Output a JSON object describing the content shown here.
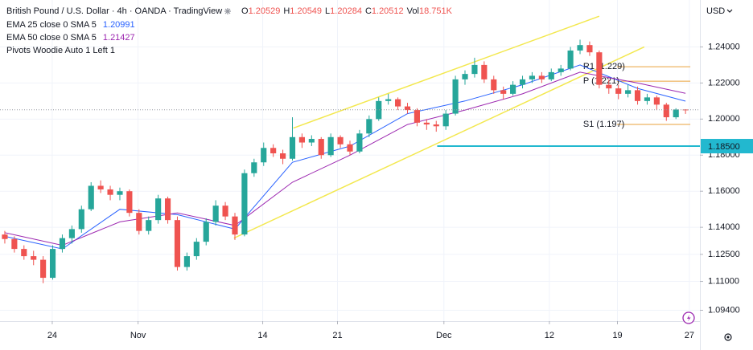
{
  "chart_data": {
    "type": "candlestick",
    "title": "British Pound / U.S. Dollar · 4h · OANDA · TradingView",
    "currency": "USD",
    "ohlc_labels": [
      "O",
      "H",
      "L",
      "C"
    ],
    "volume_label": "Vol",
    "volume": "18.751K",
    "up_color": "#26a69a",
    "down_color": "#ef5350",
    "candles": [
      [
        1.136,
        1.138,
        1.131,
        1.1335
      ],
      [
        1.1335,
        1.135,
        1.126,
        1.128
      ],
      [
        1.128,
        1.13,
        1.122,
        1.124
      ],
      [
        1.124,
        1.127,
        1.119,
        1.122
      ],
      [
        1.122,
        1.124,
        1.109,
        1.112
      ],
      [
        1.112,
        1.13,
        1.111,
        1.128
      ],
      [
        1.128,
        1.136,
        1.126,
        1.134
      ],
      [
        1.134,
        1.141,
        1.131,
        1.139
      ],
      [
        1.139,
        1.152,
        1.137,
        1.15
      ],
      [
        1.15,
        1.165,
        1.149,
        1.163
      ],
      [
        1.163,
        1.166,
        1.159,
        1.161
      ],
      [
        1.161,
        1.163,
        1.155,
        1.158
      ],
      [
        1.158,
        1.162,
        1.155,
        1.16
      ],
      [
        1.16,
        1.161,
        1.146,
        1.148
      ],
      [
        1.148,
        1.15,
        1.136,
        1.138
      ],
      [
        1.138,
        1.146,
        1.136,
        1.144
      ],
      [
        1.144,
        1.158,
        1.142,
        1.156
      ],
      [
        1.156,
        1.157,
        1.142,
        1.144
      ],
      [
        1.144,
        1.146,
        1.116,
        1.118
      ],
      [
        1.118,
        1.126,
        1.116,
        1.124
      ],
      [
        1.124,
        1.134,
        1.122,
        1.132
      ],
      [
        1.132,
        1.145,
        1.13,
        1.143
      ],
      [
        1.143,
        1.155,
        1.141,
        1.152
      ],
      [
        1.152,
        1.154,
        1.144,
        1.146
      ],
      [
        1.146,
        1.148,
        1.133,
        1.136
      ],
      [
        1.136,
        1.172,
        1.135,
        1.17
      ],
      [
        1.17,
        1.178,
        1.168,
        1.176
      ],
      [
        1.176,
        1.187,
        1.174,
        1.184
      ],
      [
        1.184,
        1.186,
        1.179,
        1.181
      ],
      [
        1.181,
        1.183,
        1.175,
        1.178
      ],
      [
        1.178,
        1.201,
        1.177,
        1.19
      ],
      [
        1.19,
        1.192,
        1.184,
        1.187
      ],
      [
        1.187,
        1.191,
        1.185,
        1.189
      ],
      [
        1.189,
        1.19,
        1.178,
        1.18
      ],
      [
        1.18,
        1.192,
        1.179,
        1.19
      ],
      [
        1.19,
        1.191,
        1.184,
        1.186
      ],
      [
        1.186,
        1.188,
        1.18,
        1.182
      ],
      [
        1.182,
        1.194,
        1.181,
        1.192
      ],
      [
        1.192,
        1.202,
        1.19,
        1.2
      ],
      [
        1.2,
        1.212,
        1.199,
        1.21
      ],
      [
        1.21,
        1.214,
        1.208,
        1.211
      ],
      [
        1.211,
        1.212,
        1.205,
        1.207
      ],
      [
        1.207,
        1.209,
        1.203,
        1.205
      ],
      [
        1.205,
        1.206,
        1.196,
        1.198
      ],
      [
        1.198,
        1.2,
        1.194,
        1.197
      ],
      [
        1.197,
        1.199,
        1.193,
        1.196
      ],
      [
        1.196,
        1.205,
        1.194,
        1.203
      ],
      [
        1.203,
        1.224,
        1.202,
        1.222
      ],
      [
        1.222,
        1.227,
        1.219,
        1.225
      ],
      [
        1.225,
        1.234,
        1.223,
        1.23
      ],
      [
        1.23,
        1.232,
        1.22,
        1.222
      ],
      [
        1.222,
        1.224,
        1.214,
        1.216
      ],
      [
        1.216,
        1.218,
        1.211,
        1.214
      ],
      [
        1.214,
        1.221,
        1.213,
        1.219
      ],
      [
        1.219,
        1.224,
        1.217,
        1.222
      ],
      [
        1.222,
        1.226,
        1.22,
        1.224
      ],
      [
        1.224,
        1.226,
        1.22,
        1.222
      ],
      [
        1.222,
        1.228,
        1.221,
        1.226
      ],
      [
        1.226,
        1.23,
        1.224,
        1.228
      ],
      [
        1.228,
        1.24,
        1.227,
        1.238
      ],
      [
        1.238,
        1.244,
        1.236,
        1.241
      ],
      [
        1.241,
        1.243,
        1.235,
        1.237
      ],
      [
        1.237,
        1.238,
        1.217,
        1.219
      ],
      [
        1.219,
        1.222,
        1.214,
        1.217
      ],
      [
        1.217,
        1.219,
        1.211,
        1.214
      ],
      [
        1.214,
        1.219,
        1.212,
        1.216
      ],
      [
        1.216,
        1.218,
        1.208,
        1.21
      ],
      [
        1.21,
        1.214,
        1.208,
        1.212
      ],
      [
        1.212,
        1.213,
        1.205,
        1.208
      ],
      [
        1.208,
        1.209,
        1.199,
        1.201
      ],
      [
        1.201,
        1.206,
        1.2,
        1.2053
      ],
      [
        1.20529,
        1.20549,
        1.20284,
        1.20512
      ]
    ],
    "series": [
      {
        "name": "EMA 25 close 0 SMA 5",
        "color": "#2962ff",
        "x": [
          0,
          6,
          12,
          18,
          24,
          30,
          36,
          42,
          48,
          54,
          60,
          66,
          71
        ],
        "values": [
          1.135,
          1.128,
          1.15,
          1.147,
          1.139,
          1.176,
          1.185,
          1.203,
          1.21,
          1.219,
          1.23,
          1.217,
          1.20991
        ]
      },
      {
        "name": "EMA 50 close 0 SMA 5",
        "color": "#9c27b0",
        "x": [
          0,
          6,
          12,
          18,
          24,
          30,
          36,
          42,
          48,
          54,
          60,
          66,
          71
        ],
        "values": [
          1.137,
          1.13,
          1.143,
          1.148,
          1.141,
          1.165,
          1.18,
          1.197,
          1.205,
          1.214,
          1.226,
          1.22,
          1.21427
        ]
      }
    ],
    "indicator": "Pivots Woodie Auto 1 Left 1",
    "pivots": {
      "color": "#e9a23b",
      "x": [
        61.5,
        71.5
      ],
      "levels": [
        {
          "value": 1.229,
          "label": "R1 (1.229)"
        },
        {
          "value": 1.221,
          "label": "P (1.221)"
        },
        {
          "value": 1.197,
          "label": "S1 (1.197)"
        }
      ]
    },
    "channel": {
      "color": "#f3e84f",
      "lines": [
        {
          "x": [
            30.1,
            62
          ],
          "y": [
            1.195,
            1.257
          ]
        },
        {
          "x": [
            23.9,
            66.7
          ],
          "y": [
            1.134,
            1.24
          ]
        }
      ]
    },
    "level": {
      "x": 45.1,
      "value": 1.185,
      "label": "1.18500",
      "color": "#22b8cf"
    },
    "xlim": [
      -0.5,
      72.5
    ],
    "ylim": [
      1.088,
      1.266
    ],
    "xticks": [
      {
        "value": 4.95,
        "label": "24"
      },
      {
        "value": 13.9,
        "label": "Nov"
      },
      {
        "value": 26.9,
        "label": "14"
      },
      {
        "value": 34.7,
        "label": "21"
      },
      {
        "value": 45.8,
        "label": "Dec"
      },
      {
        "value": 56.8,
        "label": "12"
      },
      {
        "value": 63.9,
        "label": "19"
      },
      {
        "value": 71.4,
        "label": "27"
      }
    ],
    "yticks": [
      {
        "value": 1.24,
        "label": "1.24000"
      },
      {
        "value": 1.22,
        "label": "1.22000"
      },
      {
        "value": 1.2,
        "label": "1.20000"
      },
      {
        "value": 1.18,
        "label": "1.18000"
      },
      {
        "value": 1.16,
        "label": "1.16000"
      },
      {
        "value": 1.14,
        "label": "1.14000"
      },
      {
        "value": 1.125,
        "label": "1.12500"
      },
      {
        "value": 1.11,
        "label": "1.11000"
      },
      {
        "value": 1.094,
        "label": "1.09400"
      }
    ],
    "grid": true
  }
}
